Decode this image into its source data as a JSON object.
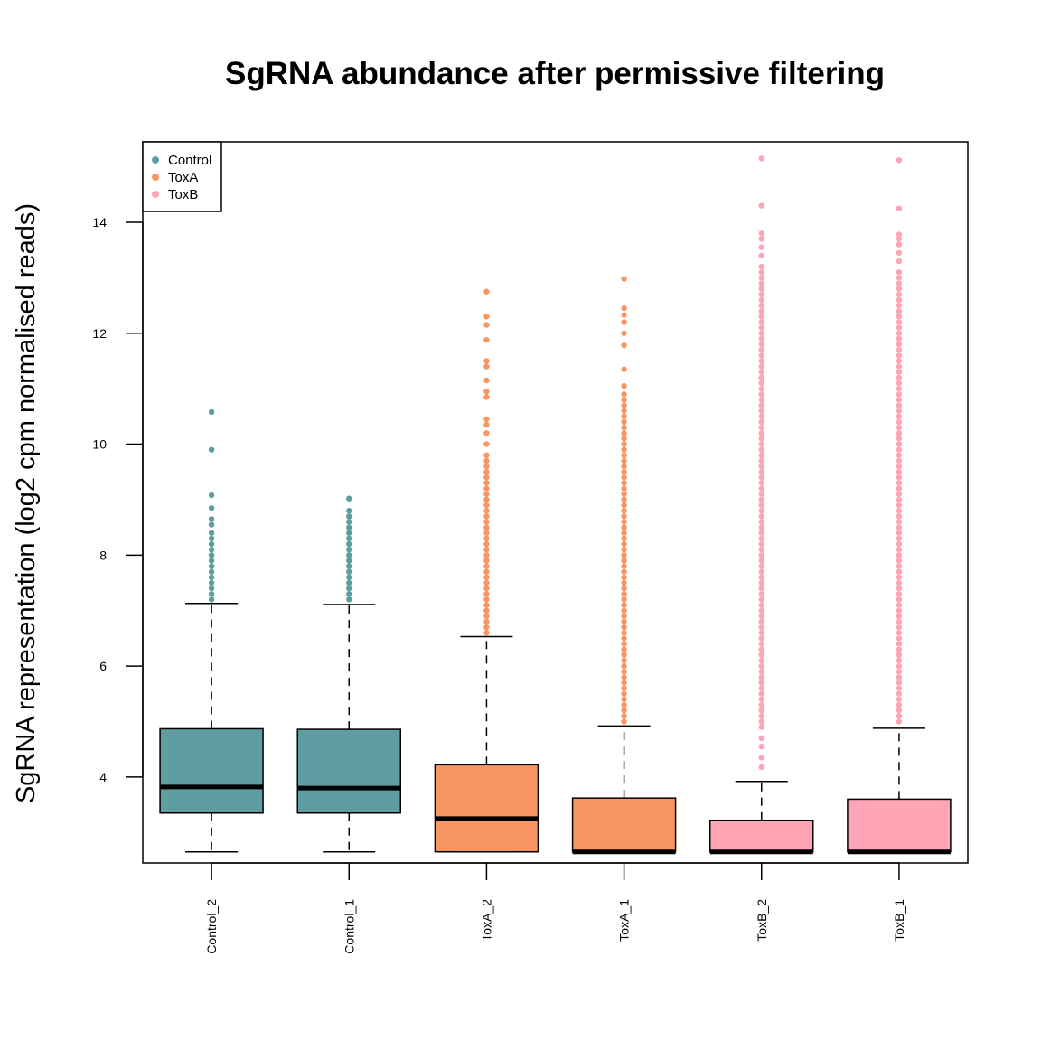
{
  "chart_data": {
    "type": "box",
    "title": "SgRNA abundance after permissive filtering",
    "ylabel": "SgRNA representation (log2 cpm normalised reads)",
    "xlabel": "",
    "ylim": [
      2.45,
      15.45
    ],
    "yticks": [
      4,
      6,
      8,
      10,
      12,
      14
    ],
    "grid": false,
    "legend": {
      "position": "top-left",
      "entries": [
        {
          "label": "Control",
          "color": "#5F9EA0"
        },
        {
          "label": "ToxA",
          "color": "#F79663"
        },
        {
          "label": "ToxB",
          "color": "#FFA4B4"
        }
      ]
    },
    "categories": [
      "Control_2",
      "Control_1",
      "ToxA_2",
      "ToxA_1",
      "ToxB_2",
      "ToxB_1"
    ],
    "boxes": [
      {
        "name": "Control_2",
        "group": "Control",
        "whisker_low": 2.65,
        "q1": 3.35,
        "median": 3.82,
        "q3": 4.87,
        "whisker_high": 7.13,
        "outliers": [
          7.2,
          7.3,
          7.4,
          7.5,
          7.6,
          7.7,
          7.8,
          7.9,
          8.0,
          8.1,
          8.2,
          8.3,
          8.4,
          8.55,
          8.65,
          8.85,
          9.08,
          9.9,
          10.58
        ]
      },
      {
        "name": "Control_1",
        "group": "Control",
        "whisker_low": 2.65,
        "q1": 3.35,
        "median": 3.8,
        "q3": 4.86,
        "whisker_high": 7.11,
        "outliers": [
          7.2,
          7.3,
          7.4,
          7.5,
          7.6,
          7.7,
          7.8,
          7.9,
          8.0,
          8.1,
          8.2,
          8.3,
          8.4,
          8.5,
          8.6,
          8.7,
          8.8,
          9.02
        ]
      },
      {
        "name": "ToxA_2",
        "group": "ToxA",
        "whisker_low": 2.65,
        "q1": 2.65,
        "median": 3.25,
        "q3": 4.22,
        "whisker_high": 6.53,
        "outliers": [
          6.6,
          6.7,
          6.8,
          6.9,
          7.0,
          7.1,
          7.2,
          7.3,
          7.4,
          7.5,
          7.6,
          7.7,
          7.8,
          7.9,
          8.0,
          8.1,
          8.2,
          8.3,
          8.4,
          8.5,
          8.6,
          8.7,
          8.8,
          8.9,
          9.0,
          9.1,
          9.2,
          9.3,
          9.4,
          9.5,
          9.6,
          9.7,
          9.8,
          10.0,
          10.2,
          10.35,
          10.45,
          10.85,
          10.95,
          11.15,
          11.4,
          11.5,
          11.88,
          12.15,
          12.3,
          12.75
        ]
      },
      {
        "name": "ToxA_1",
        "group": "ToxA",
        "whisker_low": 2.65,
        "q1": 2.65,
        "median": 2.65,
        "q3": 3.62,
        "whisker_high": 4.92,
        "outliers": [
          5.0,
          5.1,
          5.2,
          5.3,
          5.4,
          5.5,
          5.6,
          5.7,
          5.8,
          5.9,
          6.0,
          6.1,
          6.2,
          6.3,
          6.4,
          6.5,
          6.6,
          6.7,
          6.8,
          6.9,
          7.0,
          7.1,
          7.2,
          7.3,
          7.4,
          7.5,
          7.6,
          7.7,
          7.8,
          7.9,
          8.0,
          8.1,
          8.2,
          8.3,
          8.4,
          8.5,
          8.6,
          8.7,
          8.8,
          8.9,
          9.0,
          9.1,
          9.2,
          9.3,
          9.4,
          9.5,
          9.6,
          9.7,
          9.8,
          9.9,
          10.0,
          10.1,
          10.2,
          10.3,
          10.4,
          10.5,
          10.6,
          10.7,
          10.8,
          10.9,
          11.05,
          11.35,
          11.78,
          12.0,
          12.2,
          12.33,
          12.45,
          12.98
        ]
      },
      {
        "name": "ToxB_2",
        "group": "ToxB",
        "whisker_low": 2.65,
        "q1": 2.65,
        "median": 2.65,
        "q3": 3.22,
        "whisker_high": 3.92,
        "outliers": [
          4.18,
          4.35,
          4.55,
          4.7,
          4.9,
          5.0,
          5.1,
          5.2,
          5.3,
          5.4,
          5.5,
          5.6,
          5.7,
          5.8,
          5.9,
          6.0,
          6.1,
          6.2,
          6.3,
          6.4,
          6.5,
          6.6,
          6.7,
          6.8,
          6.9,
          7.0,
          7.1,
          7.2,
          7.3,
          7.4,
          7.5,
          7.6,
          7.7,
          7.8,
          7.9,
          8.0,
          8.1,
          8.2,
          8.3,
          8.4,
          8.5,
          8.6,
          8.7,
          8.8,
          8.9,
          9.0,
          9.1,
          9.2,
          9.3,
          9.4,
          9.5,
          9.6,
          9.7,
          9.8,
          9.9,
          10.0,
          10.1,
          10.2,
          10.3,
          10.4,
          10.5,
          10.6,
          10.7,
          10.8,
          10.9,
          11.0,
          11.1,
          11.2,
          11.3,
          11.4,
          11.5,
          11.6,
          11.7,
          11.8,
          11.9,
          12.0,
          12.1,
          12.2,
          12.3,
          12.4,
          12.5,
          12.6,
          12.7,
          12.8,
          12.9,
          13.0,
          13.1,
          13.2,
          13.4,
          13.55,
          13.7,
          13.8,
          14.3,
          15.15
        ]
      },
      {
        "name": "ToxB_1",
        "group": "ToxB",
        "whisker_low": 2.65,
        "q1": 2.65,
        "median": 2.65,
        "q3": 3.6,
        "whisker_high": 4.88,
        "outliers": [
          5.0,
          5.1,
          5.2,
          5.3,
          5.4,
          5.5,
          5.6,
          5.7,
          5.8,
          5.9,
          6.0,
          6.1,
          6.2,
          6.3,
          6.4,
          6.5,
          6.6,
          6.7,
          6.8,
          6.9,
          7.0,
          7.1,
          7.2,
          7.3,
          7.4,
          7.5,
          7.6,
          7.7,
          7.8,
          7.9,
          8.0,
          8.1,
          8.2,
          8.3,
          8.4,
          8.5,
          8.6,
          8.7,
          8.8,
          8.9,
          9.0,
          9.1,
          9.2,
          9.3,
          9.4,
          9.5,
          9.6,
          9.7,
          9.8,
          9.9,
          10.0,
          10.1,
          10.2,
          10.3,
          10.4,
          10.5,
          10.6,
          10.7,
          10.8,
          10.9,
          11.0,
          11.1,
          11.2,
          11.3,
          11.4,
          11.5,
          11.6,
          11.7,
          11.8,
          11.9,
          12.0,
          12.1,
          12.2,
          12.3,
          12.4,
          12.5,
          12.6,
          12.7,
          12.8,
          12.9,
          13.0,
          13.1,
          13.3,
          13.45,
          13.6,
          13.7,
          13.78,
          14.25,
          15.12
        ]
      }
    ]
  }
}
